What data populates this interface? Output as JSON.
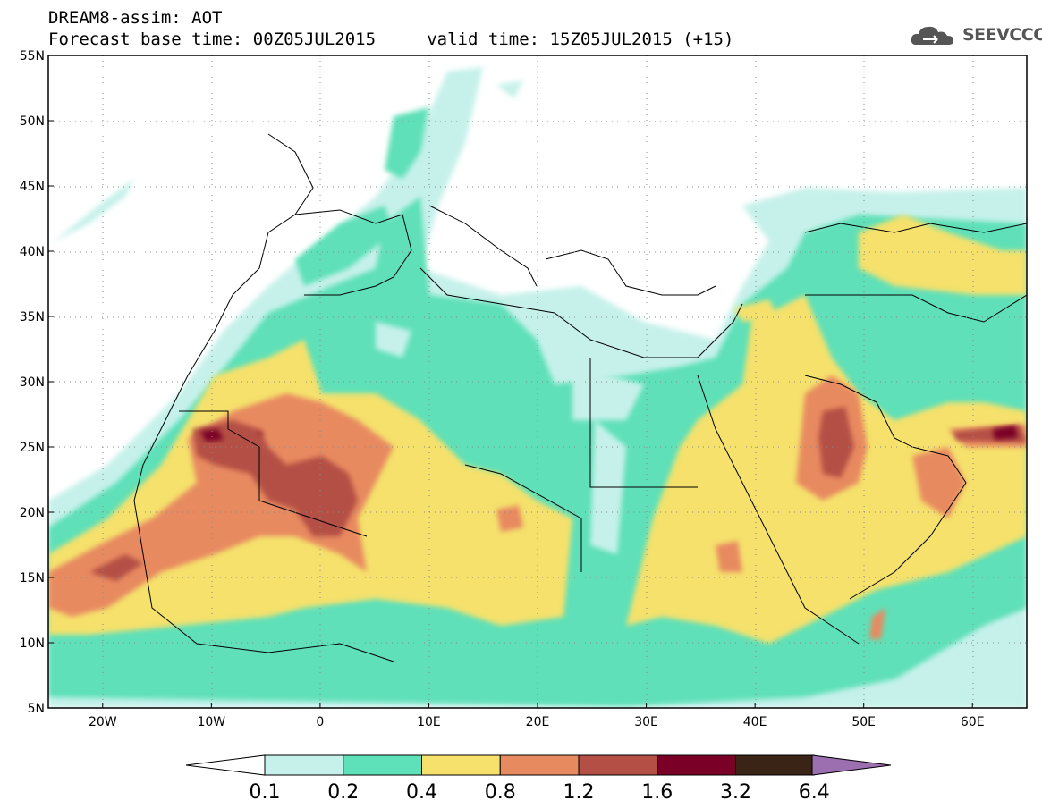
{
  "header": {
    "line1": "DREAM8-assim: AOT",
    "line2": "Forecast base time: 00Z05JUL2015     valid time: 15Z05JUL2015 (+15)"
  },
  "logo": {
    "text": "SEEVCCC",
    "icon": "cloud-icon"
  },
  "map": {
    "lat_labels": [
      "55N",
      "50N",
      "45N",
      "40N",
      "35N",
      "30N",
      "25N",
      "20N",
      "15N",
      "10N",
      "5N"
    ],
    "lon_labels": [
      "20W",
      "10W",
      "0",
      "10E",
      "20E",
      "30E",
      "40E",
      "50E",
      "60E"
    ],
    "lat_range": [
      5,
      55
    ],
    "lon_range": [
      -25,
      65
    ],
    "grid": "dotted"
  },
  "colorbar": {
    "labels": [
      "0.1",
      "0.2",
      "0.4",
      "0.8",
      "1.2",
      "1.6",
      "3.2",
      "6.4"
    ],
    "colors": [
      "#c6f1ea",
      "#5ee0b8",
      "#f5e16c",
      "#e88a60",
      "#b44f45",
      "#7a0028",
      "#3a2416",
      "#9b6fb0"
    ]
  }
}
